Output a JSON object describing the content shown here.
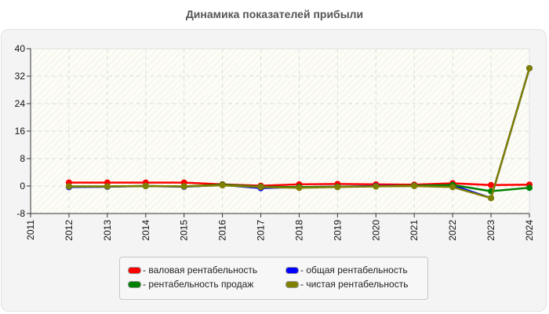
{
  "chart_data": {
    "type": "line",
    "title": "Динамика показателей прибыли",
    "xlabel": "",
    "ylabel": "",
    "x": [
      "2011",
      "2012",
      "2013",
      "2014",
      "2015",
      "2016",
      "2017",
      "2018",
      "2019",
      "2020",
      "2021",
      "2022",
      "2023",
      "2024"
    ],
    "ylim": [
      -8,
      40
    ],
    "yticks": [
      -8,
      0,
      8,
      16,
      24,
      32,
      40
    ],
    "grid": true,
    "legend_position": "bottom",
    "series": [
      {
        "name": "валовая рентабельность",
        "color": "#ff0000",
        "x": [
          "2012",
          "2013",
          "2014",
          "2015",
          "2016",
          "2017",
          "2018",
          "2019",
          "2020",
          "2021",
          "2022",
          "2023",
          "2024"
        ],
        "values": [
          1.0,
          1.0,
          1.0,
          1.0,
          0.5,
          0.1,
          0.5,
          0.6,
          0.5,
          0.4,
          0.8,
          0.3,
          0.4
        ]
      },
      {
        "name": "общая рентабельность",
        "color": "#0000ff",
        "x": [
          "2012",
          "2013",
          "2014",
          "2015",
          "2016",
          "2017",
          "2018",
          "2019",
          "2020",
          "2021",
          "2022",
          "2023",
          "2024"
        ],
        "values": [
          -0.3,
          -0.2,
          0.0,
          -0.2,
          0.3,
          -0.6,
          -0.3,
          -0.2,
          0.0,
          0.1,
          0.2,
          -3.5,
          34.3
        ]
      },
      {
        "name": "рентабельность продаж",
        "color": "#008000",
        "x": [
          "2012",
          "2013",
          "2014",
          "2015",
          "2016",
          "2017",
          "2018",
          "2019",
          "2020",
          "2021",
          "2022",
          "2023",
          "2024"
        ],
        "values": [
          -0.1,
          -0.1,
          0.0,
          -0.1,
          0.4,
          -0.2,
          -0.3,
          -0.2,
          -0.1,
          0.1,
          0.3,
          -1.5,
          -0.5
        ]
      },
      {
        "name": "чистая рентабельность",
        "color": "#808000",
        "x": [
          "2012",
          "2013",
          "2014",
          "2015",
          "2016",
          "2017",
          "2018",
          "2019",
          "2020",
          "2021",
          "2022",
          "2023",
          "2024"
        ],
        "values": [
          -0.1,
          -0.1,
          0.0,
          -0.1,
          0.2,
          -0.3,
          -0.5,
          -0.3,
          -0.1,
          0.0,
          -0.3,
          -3.5,
          34.3
        ]
      }
    ]
  },
  "legend": {
    "items": [
      {
        "label": "- валовая рентабельность",
        "color": "#ff0000"
      },
      {
        "label": "- общая рентабельность",
        "color": "#0000ff"
      },
      {
        "label": "- рентабельность продаж",
        "color": "#008000"
      },
      {
        "label": "- чистая рентабельность",
        "color": "#808000"
      }
    ]
  }
}
